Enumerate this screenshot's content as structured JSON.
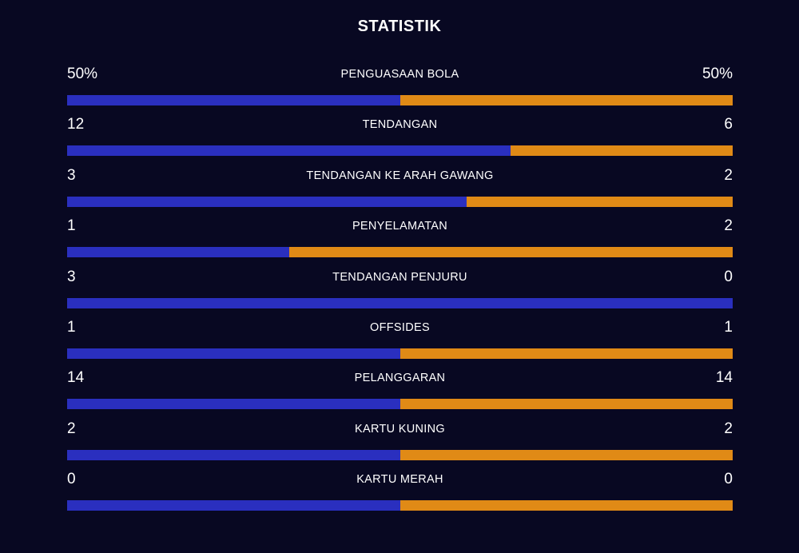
{
  "title": "STATISTIK",
  "colors": {
    "background": "#080822",
    "home_bar": "#2a2fbf",
    "away_bar": "#e08a16",
    "text": "#ffffff"
  },
  "stats": [
    {
      "label": "PENGUASAAN BOLA",
      "home": "50%",
      "away": "50%",
      "home_value": 50,
      "away_value": 50
    },
    {
      "label": "TENDANGAN",
      "home": "12",
      "away": "6",
      "home_value": 12,
      "away_value": 6
    },
    {
      "label": "TENDANGAN KE ARAH GAWANG",
      "home": "3",
      "away": "2",
      "home_value": 3,
      "away_value": 2
    },
    {
      "label": "PENYELAMATAN",
      "home": "1",
      "away": "2",
      "home_value": 1,
      "away_value": 2
    },
    {
      "label": "TENDANGAN PENJURU",
      "home": "3",
      "away": "0",
      "home_value": 3,
      "away_value": 0
    },
    {
      "label": "OFFSIDES",
      "home": "1",
      "away": "1",
      "home_value": 1,
      "away_value": 1
    },
    {
      "label": "PELANGGARAN",
      "home": "14",
      "away": "14",
      "home_value": 14,
      "away_value": 14
    },
    {
      "label": "KARTU KUNING",
      "home": "2",
      "away": "2",
      "home_value": 2,
      "away_value": 2
    },
    {
      "label": "KARTU MERAH",
      "home": "0",
      "away": "0",
      "home_value": 0,
      "away_value": 0
    }
  ]
}
